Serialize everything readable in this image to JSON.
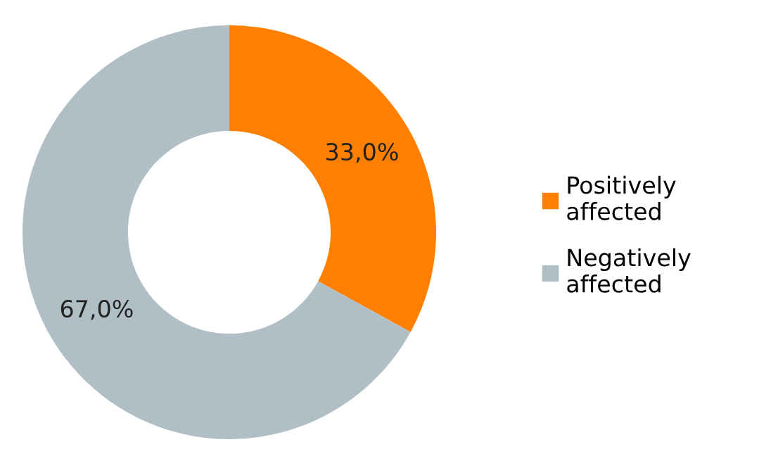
{
  "chart_data": {
    "type": "donut",
    "categories": [
      "Positively\naffected",
      "Negatively\naffected"
    ],
    "values": [
      33.0,
      67.0
    ],
    "colors": [
      "#ff8000",
      "#b0bec5"
    ],
    "value_labels": [
      "33,0%",
      "67,0%"
    ],
    "legend": "right"
  }
}
